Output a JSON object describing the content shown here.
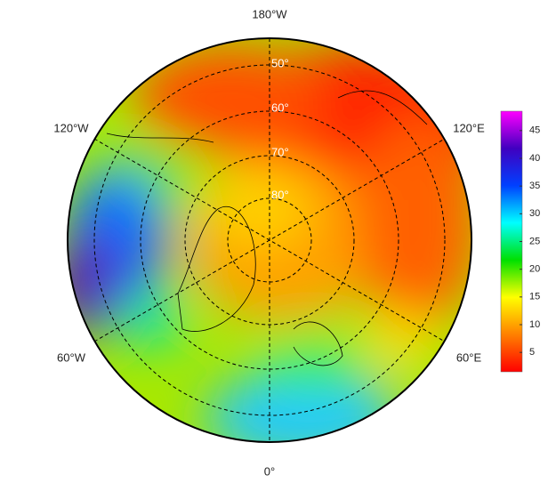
{
  "map": {
    "lon_labels": [
      "180°W",
      "120°W",
      "120°E",
      "60°W",
      "60°E",
      "0°"
    ],
    "lat_labels": [
      "50°",
      "60°",
      "70°",
      "80°"
    ]
  },
  "colorbar": {
    "lim": [
      1.5,
      48.5
    ],
    "ticks": [
      5,
      10,
      15,
      20,
      25,
      30,
      35,
      40,
      45
    ],
    "colors": [
      "#ff0000",
      "#ff8000",
      "#ffff00",
      "#00e000",
      "#00ffff",
      "#0040ff",
      "#4000c0",
      "#ff00ff"
    ]
  }
}
